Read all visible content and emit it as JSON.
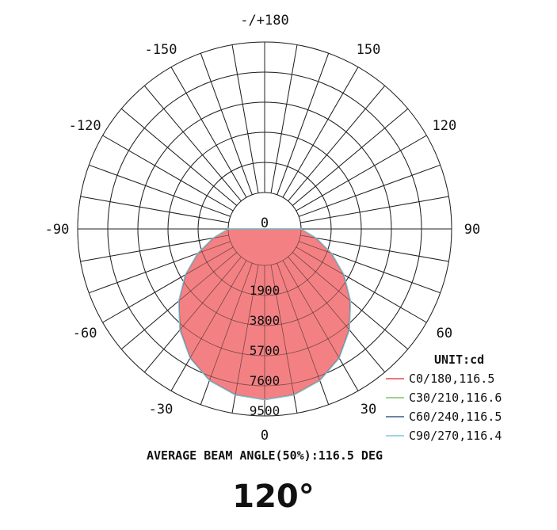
{
  "chart_data": {
    "type": "polar",
    "unit_label": "UNIT:cd",
    "radial_ticks": [
      "1900",
      "3800",
      "5700",
      "7600",
      "9500"
    ],
    "radial_values": [
      1900,
      3800,
      5700,
      7600,
      9500
    ],
    "radial_max": 9500,
    "angle_labels": [
      {
        "label": "-/+180",
        "angle": 180
      },
      {
        "label": "150",
        "angle": 150
      },
      {
        "label": "-150",
        "angle": -150
      },
      {
        "label": "120",
        "angle": 120
      },
      {
        "label": "-120",
        "angle": -120
      },
      {
        "label": "90",
        "angle": 90
      },
      {
        "label": "-90",
        "angle": -90
      },
      {
        "label": "60",
        "angle": 60
      },
      {
        "label": "-60",
        "angle": -60
      },
      {
        "label": "30",
        "angle": 30
      },
      {
        "label": "-30",
        "angle": -30
      },
      {
        "label": "0",
        "angle": 0
      }
    ],
    "series": [
      {
        "name": "C0/180,116.5",
        "color": "#e8474a",
        "angles": [
          -90,
          -80,
          -70,
          -60,
          -50,
          -40,
          -30,
          -20,
          -10,
          0,
          10,
          20,
          30,
          40,
          50,
          60,
          70,
          80,
          90
        ],
        "values": [
          0,
          980,
          2180,
          3460,
          4760,
          6000,
          7100,
          7880,
          8330,
          8480,
          8330,
          7880,
          7100,
          6000,
          4760,
          3460,
          2180,
          980,
          0
        ]
      },
      {
        "name": "C30/210,116.6",
        "color": "#7cc36a",
        "angles": [
          -90,
          -80,
          -70,
          -60,
          -50,
          -40,
          -30,
          -20,
          -10,
          0,
          10,
          20,
          30,
          40,
          50,
          60,
          70,
          80,
          90
        ],
        "values": [
          0,
          1000,
          2200,
          3480,
          4780,
          6020,
          7110,
          7890,
          8340,
          8480,
          8340,
          7890,
          7110,
          6020,
          4780,
          3480,
          2200,
          1000,
          0
        ]
      },
      {
        "name": "C60/240,116.5",
        "color": "#3b5a8a",
        "angles": [
          -90,
          -80,
          -70,
          -60,
          -50,
          -40,
          -30,
          -20,
          -10,
          0,
          10,
          20,
          30,
          40,
          50,
          60,
          70,
          80,
          90
        ],
        "values": [
          0,
          990,
          2190,
          3470,
          4770,
          6010,
          7100,
          7880,
          8330,
          8480,
          8330,
          7880,
          7100,
          6010,
          4770,
          3470,
          2190,
          990,
          0
        ]
      },
      {
        "name": "C90/270,116.4",
        "color": "#7fc8d8",
        "angles": [
          -90,
          -80,
          -70,
          -60,
          -50,
          -40,
          -30,
          -20,
          -10,
          0,
          10,
          20,
          30,
          40,
          50,
          60,
          70,
          80,
          90
        ],
        "values": [
          0,
          1010,
          2210,
          3490,
          4790,
          6030,
          7120,
          7890,
          8340,
          8480,
          8340,
          7890,
          7120,
          6030,
          4790,
          3490,
          2210,
          1010,
          0
        ]
      }
    ],
    "fill_color": "#f27a7c"
  },
  "beam_note": "AVERAGE BEAM ANGLE(50%):116.5 DEG",
  "headline": "120°"
}
